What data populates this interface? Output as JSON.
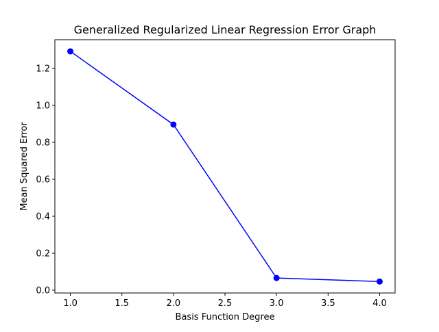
{
  "chart_data": {
    "type": "line",
    "title": "Generalized Regularized Linear Regression Error Graph",
    "xlabel": "Basis Function Degree",
    "ylabel": "Mean Squared Error",
    "x": [
      1.0,
      2.0,
      3.0,
      4.0
    ],
    "series": [
      {
        "values": [
          1.292,
          0.896,
          0.066,
          0.047
        ],
        "color": "#0000ff",
        "marker": "circle"
      }
    ],
    "xlim": [
      0.85,
      4.15
    ],
    "ylim": [
      -0.015,
      1.355
    ],
    "xticks": [
      1.0,
      1.5,
      2.0,
      2.5,
      3.0,
      3.5,
      4.0
    ],
    "xtick_labels": [
      "1.0",
      "1.5",
      "2.0",
      "2.5",
      "3.0",
      "3.5",
      "4.0"
    ],
    "yticks": [
      0.0,
      0.2,
      0.4,
      0.6,
      0.8,
      1.0,
      1.2
    ],
    "ytick_labels": [
      "0.0",
      "0.2",
      "0.4",
      "0.6",
      "0.8",
      "1.0",
      "1.2"
    ],
    "grid": false,
    "legend": "none"
  }
}
